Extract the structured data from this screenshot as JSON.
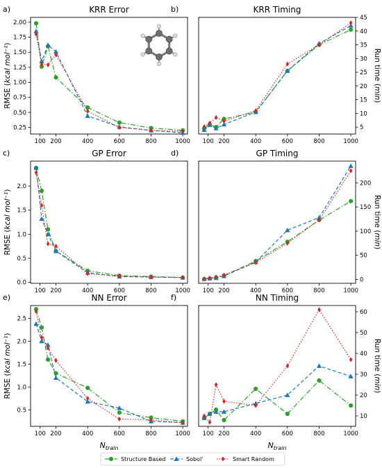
{
  "figure": {
    "legend": [
      {
        "name": "Structure Based",
        "color": "#2ca02c",
        "marker": "circle",
        "dash": "dashdot"
      },
      {
        "name": "Sobol'",
        "color": "#1f77b4",
        "marker": "triangle",
        "dash": "dashed"
      },
      {
        "name": "Smart Random",
        "color": "#d62728",
        "marker": "diamond",
        "dash": "dotted"
      }
    ],
    "molecule_icon": "benzene-molecule-icon"
  },
  "chart_data": [
    {
      "panel": "a)",
      "type": "line",
      "title": "KRR Error",
      "xlabel": "",
      "ylabel": "RMSE (kcal mol⁻¹)",
      "ylabel_side": "left",
      "xlim": [
        40,
        1030
      ],
      "ylim": [
        0.14,
        2.08
      ],
      "xticks": [
        100,
        200,
        400,
        600,
        800,
        1000
      ],
      "yticks": [
        0.25,
        0.5,
        0.75,
        1.0,
        1.25,
        1.5,
        1.75,
        2.0
      ],
      "ytick_labels": [
        "0.25",
        "0.50",
        "0.75",
        "1.00",
        "1.25",
        "1.50",
        "1.75",
        "2.00"
      ],
      "show_molecule": true,
      "series": [
        {
          "name": "Structure Based",
          "x": [
            75,
            110,
            150,
            200,
            400,
            600,
            800,
            1000
          ],
          "y": [
            1.98,
            1.26,
            1.6,
            1.08,
            0.58,
            0.33,
            0.24,
            0.2
          ]
        },
        {
          "name": "Sobol'",
          "x": [
            75,
            110,
            150,
            200,
            400,
            600,
            800,
            1000
          ],
          "y": [
            1.85,
            1.35,
            1.62,
            1.51,
            0.44,
            0.26,
            0.2,
            0.16
          ]
        },
        {
          "name": "Smart Random",
          "x": [
            75,
            110,
            150,
            200,
            400,
            600,
            800,
            1000
          ],
          "y": [
            1.8,
            1.3,
            1.29,
            1.46,
            0.52,
            0.25,
            0.2,
            0.18
          ]
        }
      ]
    },
    {
      "panel": "b)",
      "type": "line",
      "title": "KRR Timing",
      "xlabel": "",
      "ylabel": "Run time (min)",
      "ylabel_side": "right",
      "xlim": [
        40,
        1030
      ],
      "ylim": [
        2.5,
        45
      ],
      "xticks": [
        100,
        200,
        400,
        600,
        800,
        1000
      ],
      "yticks": [
        5,
        10,
        15,
        20,
        25,
        30,
        35,
        40,
        45
      ],
      "ytick_labels": [
        "5",
        "10",
        "15",
        "20",
        "25",
        "30",
        "35",
        "40",
        "45"
      ],
      "series": [
        {
          "name": "Structure Based",
          "x": [
            75,
            110,
            150,
            200,
            400,
            600,
            800,
            1000
          ],
          "y": [
            4.5,
            6.0,
            5.0,
            8.0,
            10.5,
            25.5,
            35.0,
            40.5
          ]
        },
        {
          "name": "Sobol'",
          "x": [
            75,
            110,
            150,
            200,
            400,
            600,
            800,
            1000
          ],
          "y": [
            4.0,
            5.8,
            4.6,
            6.0,
            10.5,
            25.5,
            35.5,
            42.0
          ]
        },
        {
          "name": "Smart Random",
          "x": [
            75,
            110,
            150,
            200,
            400,
            600,
            800,
            1000
          ],
          "y": [
            5.2,
            6.5,
            8.5,
            7.2,
            11.0,
            28.0,
            35.0,
            43.0
          ]
        }
      ]
    },
    {
      "panel": "c)",
      "type": "line",
      "title": "GP Error",
      "xlabel": "",
      "ylabel": "RMSE (kcal mol⁻¹)",
      "ylabel_side": "left",
      "xlim": [
        40,
        1030
      ],
      "ylim": [
        -0.02,
        2.52
      ],
      "xticks": [
        100,
        200,
        400,
        600,
        800,
        1000
      ],
      "yticks": [
        0.0,
        0.5,
        1.0,
        1.5,
        2.0
      ],
      "ytick_labels": [
        "0.0",
        "0.5",
        "1.0",
        "1.5",
        "2.0"
      ],
      "series": [
        {
          "name": "Structure Based",
          "x": [
            75,
            110,
            150,
            200,
            400,
            600,
            800,
            1000
          ],
          "y": [
            2.38,
            1.9,
            1.1,
            0.65,
            0.24,
            0.14,
            0.12,
            0.1
          ]
        },
        {
          "name": "Sobol'",
          "x": [
            75,
            110,
            150,
            200,
            400,
            600,
            800,
            1000
          ],
          "y": [
            2.38,
            1.32,
            1.0,
            0.65,
            0.2,
            0.12,
            0.11,
            0.1
          ]
        },
        {
          "name": "Smart Random",
          "x": [
            75,
            110,
            150,
            200,
            400,
            600,
            800,
            1000
          ],
          "y": [
            2.28,
            1.6,
            0.8,
            0.75,
            0.18,
            0.13,
            0.11,
            0.1
          ]
        }
      ]
    },
    {
      "panel": "d)",
      "type": "line",
      "title": "GP Timing",
      "xlabel": "",
      "ylabel": "Run time (min)",
      "ylabel_side": "right",
      "xlim": [
        40,
        1030
      ],
      "ylim": [
        -8,
        245
      ],
      "xticks": [
        100,
        200,
        400,
        600,
        800,
        1000
      ],
      "yticks": [
        0,
        50,
        100,
        150,
        200
      ],
      "ytick_labels": [
        "0",
        "50",
        "100",
        "150",
        "200"
      ],
      "series": [
        {
          "name": "Structure Based",
          "x": [
            75,
            110,
            150,
            200,
            400,
            600,
            800,
            1000
          ],
          "y": [
            1,
            2,
            4,
            8,
            38,
            78,
            123,
            162
          ]
        },
        {
          "name": "Sobol'",
          "x": [
            75,
            110,
            150,
            200,
            400,
            600,
            800,
            1000
          ],
          "y": [
            1,
            2,
            3,
            7,
            36,
            102,
            128,
            235
          ]
        },
        {
          "name": "Smart Random",
          "x": [
            75,
            110,
            150,
            200,
            400,
            600,
            800,
            1000
          ],
          "y": [
            1,
            3,
            5,
            9,
            35,
            75,
            123,
            225
          ]
        }
      ]
    },
    {
      "panel": "e)",
      "type": "line",
      "title": "NN Error",
      "xlabel": "N_train",
      "ylabel": "RMSE (kcal mol⁻¹)",
      "ylabel_side": "left",
      "xlim": [
        40,
        1030
      ],
      "ylim": [
        0.14,
        2.78
      ],
      "xticks": [
        100,
        200,
        400,
        600,
        800,
        1000
      ],
      "yticks": [
        0.5,
        1.0,
        1.5,
        2.0,
        2.5
      ],
      "ytick_labels": [
        "0.5",
        "1.0",
        "1.5",
        "2.0",
        "2.5"
      ],
      "series": [
        {
          "name": "Structure Based",
          "x": [
            75,
            110,
            150,
            200,
            400,
            600,
            800,
            1000
          ],
          "y": [
            2.7,
            2.3,
            1.6,
            1.3,
            0.98,
            0.44,
            0.33,
            0.25
          ]
        },
        {
          "name": "Sobol'",
          "x": [
            75,
            110,
            150,
            200,
            400,
            600,
            800,
            1000
          ],
          "y": [
            2.38,
            2.0,
            1.92,
            1.2,
            0.68,
            0.54,
            0.25,
            0.22
          ]
        },
        {
          "name": "Smart Random",
          "x": [
            75,
            110,
            150,
            200,
            400,
            600,
            800,
            1000
          ],
          "y": [
            2.65,
            2.08,
            1.85,
            1.58,
            0.75,
            0.3,
            0.28,
            0.22
          ]
        }
      ]
    },
    {
      "panel": "f)",
      "type": "line",
      "title": "NN Timing",
      "xlabel": "N_train",
      "ylabel": "Run time (min)",
      "ylabel_side": "right",
      "xlim": [
        40,
        1030
      ],
      "ylim": [
        5,
        63
      ],
      "xticks": [
        100,
        200,
        400,
        600,
        800,
        1000
      ],
      "yticks": [
        10,
        20,
        30,
        40,
        50,
        60
      ],
      "ytick_labels": [
        "10",
        "20",
        "30",
        "40",
        "50",
        "60"
      ],
      "series": [
        {
          "name": "Structure Based",
          "x": [
            75,
            110,
            150,
            200,
            400,
            600,
            800,
            1000
          ],
          "y": [
            9,
            11,
            13,
            8,
            23,
            11,
            27,
            15
          ]
        },
        {
          "name": "Sobol'",
          "x": [
            75,
            110,
            150,
            200,
            400,
            600,
            800,
            1000
          ],
          "y": [
            9,
            11,
            12,
            12,
            16,
            20,
            34,
            29
          ]
        },
        {
          "name": "Smart Random",
          "x": [
            75,
            110,
            150,
            200,
            400,
            600,
            800,
            1000
          ],
          "y": [
            10,
            7,
            25,
            17,
            15,
            34,
            61,
            37
          ]
        }
      ]
    }
  ]
}
